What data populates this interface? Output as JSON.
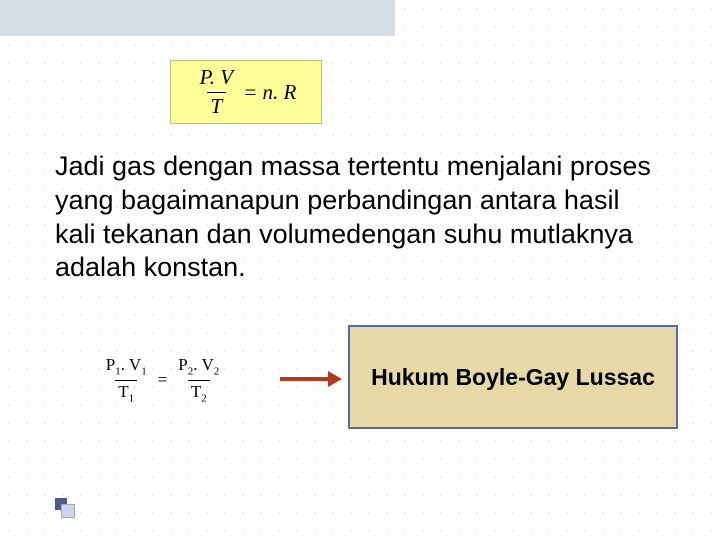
{
  "formula1": {
    "numerator": "P. V",
    "denominator": "T",
    "rhs": "= n. R",
    "bg_color": "#ffff99",
    "font_family": "Times New Roman",
    "font_style": "italic",
    "font_size_pt": 18
  },
  "body_text": "Jadi gas dengan massa tertentu menjalani proses yang bagaimanapun perbandingan antara hasil kali tekanan dan volumedengan suhu mutlaknya adalah konstan.",
  "body_style": {
    "font_family": "Tahoma",
    "font_size_pt": 20,
    "color": "#000000"
  },
  "formula2": {
    "left": {
      "num_base": "P₁. V₁",
      "den_base": "T₁"
    },
    "right": {
      "num_base": "P₂. V₂",
      "den_base": "T₂"
    },
    "eq": "="
  },
  "arrow": {
    "color": "#b23a1a"
  },
  "law_box": {
    "label": "Hukum Boyle-Gay Lussac",
    "bg_color": "#e6d9a6",
    "border_color": "#5a6aa8",
    "font_weight": "bold",
    "font_size_pt": 17
  },
  "header_bar_color": "#d6dde4",
  "page_bg": "#ffffff",
  "dot_grid_color": "#e8e8e8"
}
